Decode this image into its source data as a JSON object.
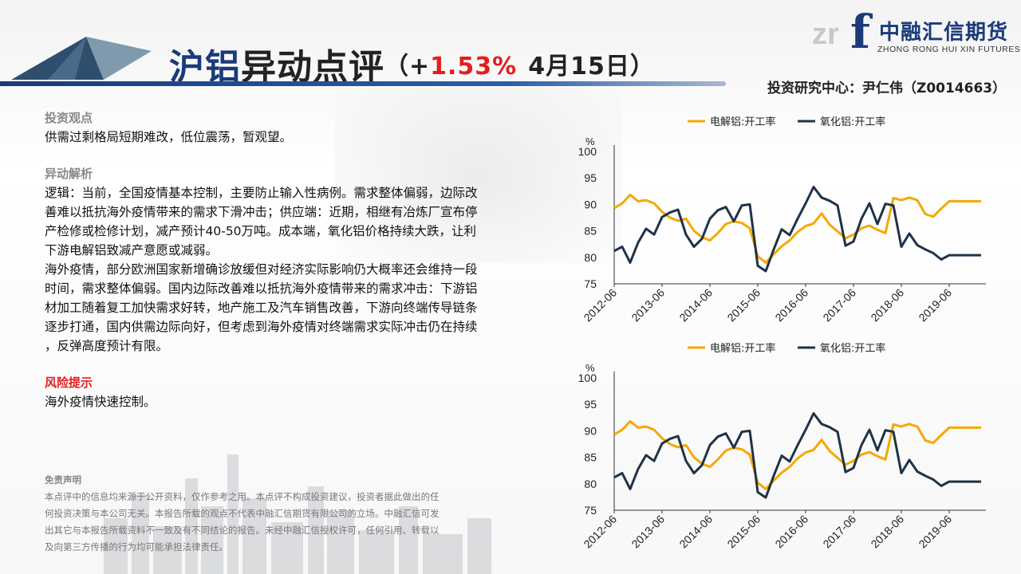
{
  "header": {
    "title_part1": "沪铝",
    "title_part2": "异动点评",
    "paren_open": "（+",
    "change": "1.53%",
    "date": "4月15日）",
    "author": "投资研究中心：尹仁伟（Z0014663）"
  },
  "logo": {
    "letter": "f",
    "mark": "zr",
    "company_cn": "中融汇信期货",
    "company_en": "ZHONG RONG HUI XIN FUTURES"
  },
  "sections": {
    "view_heading": "投资观点",
    "view_text": "供需过剩格局短期难改，低位震荡，暂观望。",
    "analysis_heading": "异动解析",
    "analysis_lines_1": [
      "逻辑：当前，全国疫情基本控制，主要防止输入性病例。需求整体偏弱，边际改",
      "善难以抵抗海外疫情带来的需求下滑冲击；供应端：近期，相继有冶炼厂宣布停",
      "产检修或检修计划，减产预计40-50万吨。成本端，氧化铝价格持续大跌，让利",
      "下游电解铝致减产意愿或减弱。"
    ],
    "analysis_lines_2": [
      "海外疫情，部分欧洲国家新增确诊放缓但对经济实际影响仍大概率还会维持一段",
      "时间，需求整体偏弱。国内边际改善难以抵抗海外疫情带来的需求冲击：下游铝",
      "材加工随着复工加快需求好转，地产施工及汽车销售改善，下游向终端传导链条",
      "逐步打通，国内供需边际向好，但考虑到海外疫情对终端需求实际冲击仍在持续",
      "，反弹高度预计有限。"
    ],
    "risk_heading": "风险提示",
    "risk_text": "海外疫情快速控制。"
  },
  "disclaimer": {
    "heading": "免责声明",
    "lines": [
      "本点评中的信息均来源于公开资料，仅作参考之用。本点评不构成投资建议，投资者据此做出的任",
      "何投资决策与本公司无关。本报告所载的观点不代表中融汇信期货有限公司的立场。中融汇信可发",
      "出其它与本报告所载资料不一致及有不同结论的报告。未经中融汇信授权许可，任何引用、转载以",
      "及向第三方传播的行为均可能承担法律责任。"
    ]
  },
  "chart_data": [
    {
      "type": "line",
      "ylabel": "%",
      "ylim": [
        75,
        100
      ],
      "yticks": [
        75,
        80,
        85,
        90,
        95,
        100
      ],
      "grid": false,
      "legend": "top",
      "x": [
        "2012-06",
        "2012-08",
        "2012-10",
        "2012-12",
        "2013-02",
        "2013-04",
        "2013-06",
        "2013-08",
        "2013-10",
        "2013-12",
        "2014-02",
        "2014-04",
        "2014-06",
        "2014-08",
        "2014-10",
        "2014-12",
        "2015-02",
        "2015-04",
        "2015-06",
        "2015-08",
        "2015-10",
        "2015-12",
        "2016-02",
        "2016-04",
        "2016-06",
        "2016-08",
        "2016-10",
        "2016-12",
        "2017-02",
        "2017-04",
        "2017-06",
        "2017-08",
        "2017-10",
        "2017-12",
        "2018-02",
        "2018-04",
        "2018-06",
        "2018-08",
        "2018-10",
        "2018-12",
        "2019-02",
        "2019-04",
        "2019-06",
        "2019-08",
        "2019-10",
        "2019-12",
        "2020-02"
      ],
      "xticks": [
        "2012-06",
        "2013-06",
        "2014-06",
        "2015-06",
        "2016-06",
        "2017-06",
        "2018-06",
        "2019-06"
      ],
      "series": [
        {
          "name": "电解铝:开工率",
          "color": "#f5a800",
          "values": [
            89.3,
            90.2,
            91.8,
            90.6,
            90.8,
            90.2,
            88.6,
            87.5,
            86.9,
            87.3,
            85.0,
            83.8,
            83.2,
            84.6,
            86.3,
            86.8,
            86.5,
            85.5,
            80.2,
            79.0,
            80.6,
            82.1,
            83.2,
            84.8,
            85.9,
            86.4,
            88.3,
            86.2,
            84.9,
            83.6,
            84.3,
            85.5,
            86.0,
            85.2,
            84.6,
            91.2,
            90.8,
            91.3,
            90.8,
            88.2,
            87.7,
            89.2,
            90.6,
            90.6,
            90.6,
            90.6,
            90.6
          ]
        },
        {
          "name": "氧化铝:开工率",
          "color": "#1f3348",
          "values": [
            81.2,
            82.0,
            79.0,
            82.8,
            85.4,
            84.3,
            87.6,
            88.5,
            89.0,
            84.3,
            82.0,
            83.5,
            87.3,
            88.9,
            89.5,
            86.8,
            89.8,
            90.0,
            78.4,
            77.4,
            81.5,
            85.3,
            84.2,
            87.3,
            90.2,
            93.3,
            91.3,
            90.7,
            89.8,
            82.2,
            83.0,
            87.3,
            90.2,
            86.3,
            90.1,
            89.8,
            82.0,
            84.5,
            82.3,
            81.5,
            80.8,
            79.6,
            80.4,
            80.4,
            80.4,
            80.4,
            80.4
          ]
        }
      ]
    },
    {
      "type": "line",
      "ylabel": "%",
      "ylim": [
        75,
        100
      ],
      "yticks": [
        75,
        80,
        85,
        90,
        95,
        100
      ],
      "grid": false,
      "legend": "top",
      "x": [
        "2012-06",
        "2012-08",
        "2012-10",
        "2012-12",
        "2013-02",
        "2013-04",
        "2013-06",
        "2013-08",
        "2013-10",
        "2013-12",
        "2014-02",
        "2014-04",
        "2014-06",
        "2014-08",
        "2014-10",
        "2014-12",
        "2015-02",
        "2015-04",
        "2015-06",
        "2015-08",
        "2015-10",
        "2015-12",
        "2016-02",
        "2016-04",
        "2016-06",
        "2016-08",
        "2016-10",
        "2016-12",
        "2017-02",
        "2017-04",
        "2017-06",
        "2017-08",
        "2017-10",
        "2017-12",
        "2018-02",
        "2018-04",
        "2018-06",
        "2018-08",
        "2018-10",
        "2018-12",
        "2019-02",
        "2019-04",
        "2019-06",
        "2019-08",
        "2019-10",
        "2019-12",
        "2020-02"
      ],
      "xticks": [
        "2012-06",
        "2013-06",
        "2014-06",
        "2015-06",
        "2016-06",
        "2017-06",
        "2018-06",
        "2019-06"
      ],
      "series": [
        {
          "name": "电解铝:开工率",
          "color": "#f5a800",
          "values": [
            89.3,
            90.2,
            91.8,
            90.6,
            90.8,
            90.2,
            88.6,
            87.5,
            86.9,
            87.3,
            85.0,
            83.8,
            83.2,
            84.6,
            86.3,
            86.8,
            86.5,
            85.5,
            80.2,
            79.0,
            80.6,
            82.1,
            83.2,
            84.8,
            85.9,
            86.4,
            88.3,
            86.2,
            84.9,
            83.6,
            84.3,
            85.5,
            86.0,
            85.2,
            84.6,
            91.2,
            90.8,
            91.3,
            90.8,
            88.2,
            87.7,
            89.2,
            90.6,
            90.6,
            90.6,
            90.6,
            90.6
          ]
        },
        {
          "name": "氧化铝:开工率",
          "color": "#1f3348",
          "values": [
            81.2,
            82.0,
            79.0,
            82.8,
            85.4,
            84.3,
            87.6,
            88.5,
            89.0,
            84.3,
            82.0,
            83.5,
            87.3,
            88.9,
            89.5,
            86.8,
            89.8,
            90.0,
            78.4,
            77.4,
            81.5,
            85.3,
            84.2,
            87.3,
            90.2,
            93.3,
            91.3,
            90.7,
            89.8,
            82.2,
            83.0,
            87.3,
            90.2,
            86.3,
            90.1,
            89.8,
            82.0,
            84.5,
            82.3,
            81.5,
            80.8,
            79.6,
            80.4,
            80.4,
            80.4,
            80.4,
            80.4
          ]
        }
      ]
    }
  ]
}
